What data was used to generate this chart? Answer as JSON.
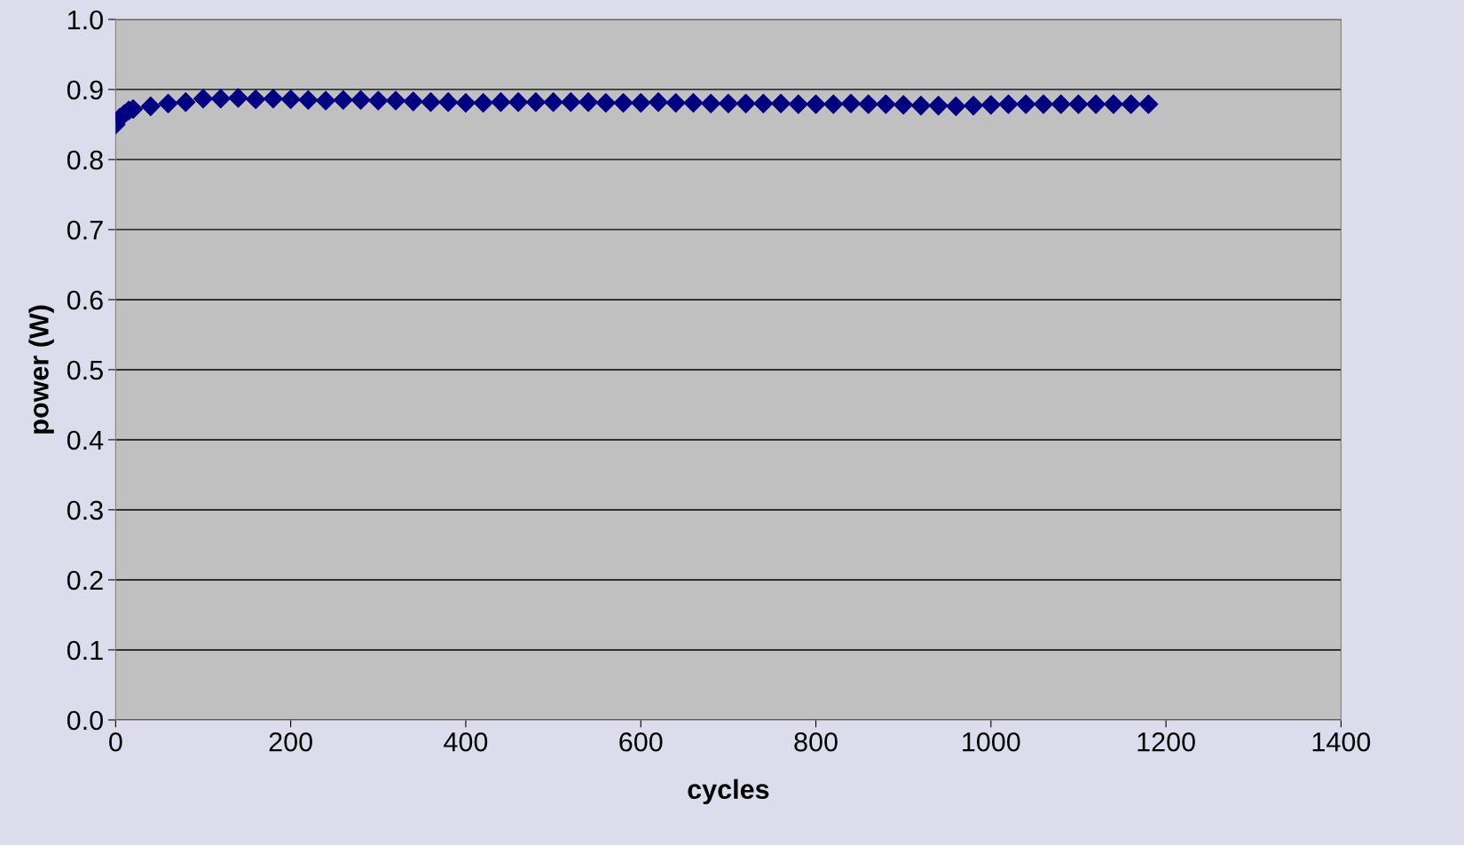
{
  "chart_data": {
    "type": "scatter",
    "xlabel": "cycles",
    "ylabel": "power (W)",
    "xlim": [
      0,
      1400
    ],
    "xticks": [
      0,
      200,
      400,
      600,
      800,
      1000,
      1200,
      1400
    ],
    "ylim": [
      0,
      1
    ],
    "yticks": [
      {
        "value": 0,
        "label": "0.0"
      },
      {
        "value": 0.1,
        "label": "0.1"
      },
      {
        "value": 0.2,
        "label": "0.2"
      },
      {
        "value": 0.3,
        "label": "0.3"
      },
      {
        "value": 0.4,
        "label": "0.4"
      },
      {
        "value": 0.5,
        "label": "0.5"
      },
      {
        "value": 0.6,
        "label": "0.6"
      },
      {
        "value": 0.7,
        "label": "0.7"
      },
      {
        "value": 0.8,
        "label": "0.8"
      },
      {
        "value": 0.9,
        "label": "0.9"
      },
      {
        "value": 1,
        "label": "1.0"
      }
    ],
    "grid": "y",
    "marker": "diamond",
    "legend": false,
    "series": [
      {
        "color": "#000080",
        "x": [
          0,
          5,
          10,
          15,
          20,
          40,
          60,
          80,
          100,
          120,
          140,
          160,
          180,
          200,
          220,
          240,
          260,
          280,
          300,
          320,
          340,
          360,
          380,
          400,
          420,
          440,
          460,
          480,
          500,
          520,
          540,
          560,
          580,
          600,
          620,
          640,
          660,
          680,
          700,
          720,
          740,
          760,
          780,
          800,
          820,
          840,
          860,
          880,
          900,
          920,
          940,
          960,
          980,
          1000,
          1020,
          1040,
          1060,
          1080,
          1100,
          1120,
          1140,
          1160,
          1180
        ],
        "values": [
          0.85,
          0.86,
          0.865,
          0.87,
          0.872,
          0.876,
          0.88,
          0.882,
          0.887,
          0.887,
          0.888,
          0.886,
          0.887,
          0.886,
          0.885,
          0.884,
          0.885,
          0.885,
          0.884,
          0.884,
          0.883,
          0.882,
          0.882,
          0.881,
          0.881,
          0.882,
          0.882,
          0.882,
          0.882,
          0.882,
          0.882,
          0.881,
          0.881,
          0.881,
          0.882,
          0.881,
          0.881,
          0.88,
          0.88,
          0.88,
          0.88,
          0.88,
          0.879,
          0.879,
          0.879,
          0.88,
          0.879,
          0.879,
          0.878,
          0.877,
          0.877,
          0.876,
          0.877,
          0.878,
          0.879,
          0.879,
          0.879,
          0.879,
          0.879,
          0.879,
          0.879,
          0.879,
          0.879
        ]
      }
    ]
  }
}
